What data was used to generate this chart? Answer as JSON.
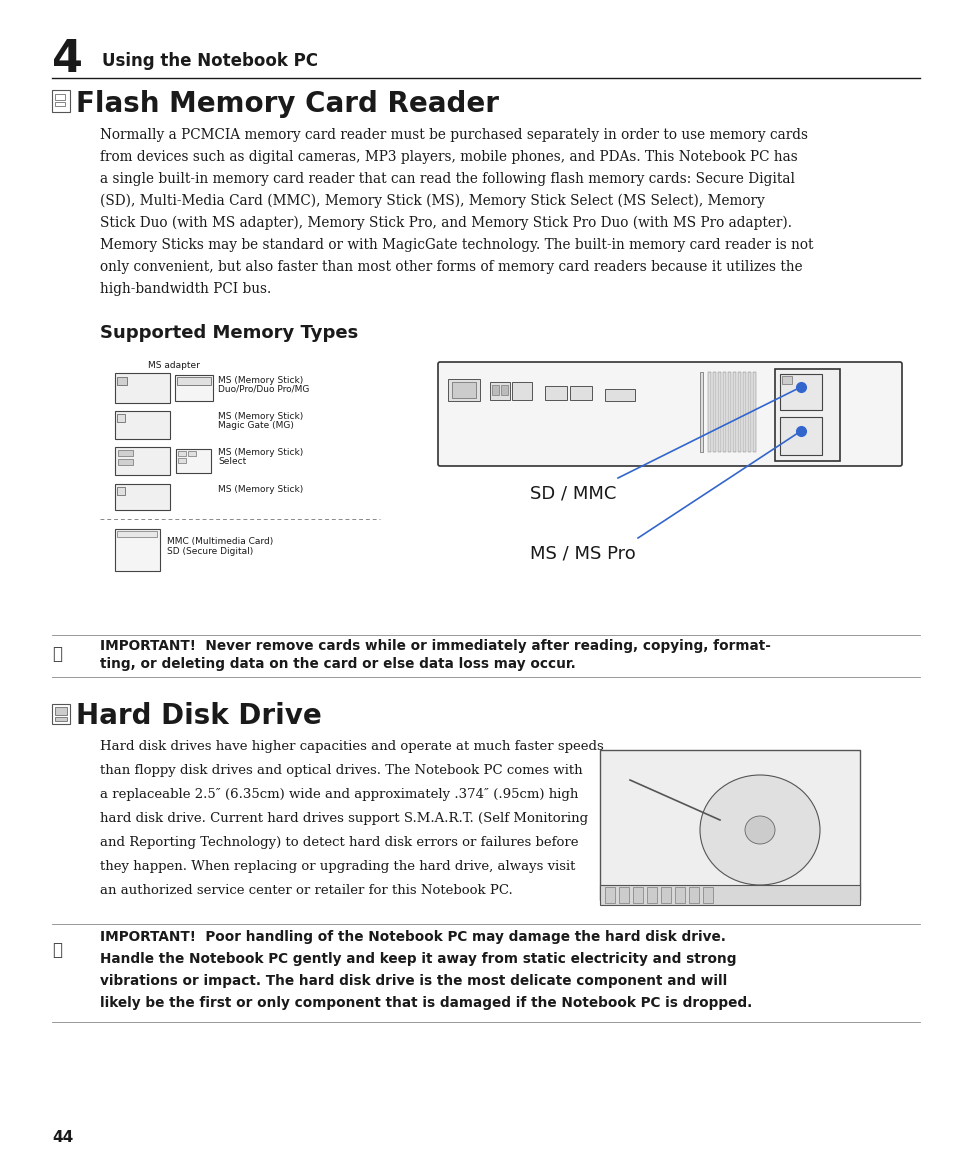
{
  "background_color": "#ffffff",
  "text_color": "#1a1a1a",
  "chapter_number": "4",
  "chapter_title": "Using the Notebook PC",
  "section1_title": "Flash Memory Card Reader",
  "section1_body_lines": [
    "Normally a PCMCIA memory card reader must be purchased separately in order to use memory cards",
    "from devices such as digital cameras, MP3 players, mobile phones, and PDAs. This Notebook PC has",
    "a single built-in memory card reader that can read the following flash memory cards: Secure Digital",
    "(SD), Multi-Media Card (MMC), Memory Stick (MS), Memory Stick Select (MS Select), Memory",
    "Stick Duo (with MS adapter), Memory Stick Pro, and Memory Stick Pro Duo (with MS Pro adapter).",
    "Memory Sticks may be standard or with MagicGate technology. The built-in memory card reader is not",
    "only convenient, but also faster than most other forms of memory card readers because it utilizes the",
    "high-bandwidth PCI bus."
  ],
  "subsection_title": "Supported Memory Types",
  "important1_line1": "IMPORTANT!  Never remove cards while or immediately after reading, copying, format-",
  "important1_line2": "ting, or deleting data on the card or else data loss may occur.",
  "section2_title": "Hard Disk Drive",
  "section2_body_lines": [
    "Hard disk drives have higher capacities and operate at much faster speeds",
    "than floppy disk drives and optical drives. The Notebook PC comes with",
    "a replaceable 2.5″ (6.35cm) wide and approximately .374″ (.95cm) high",
    "hard disk drive. Current hard drives support S.M.A.R.T. (Self Monitoring",
    "and Reporting Technology) to detect hard disk errors or failures before",
    "they happen. When replacing or upgrading the hard drive, always visit",
    "an authorized service center or retailer for this Notebook PC."
  ],
  "important2_line1": "IMPORTANT!  Poor handling of the Notebook PC may damage the hard disk drive.",
  "important2_line2": "Handle the Notebook PC gently and keep it away from static electricity and strong",
  "important2_line3": "vibrations or impact. The hard disk drive is the most delicate component and will",
  "important2_line4": "likely be the first or only component that is damaged if the Notebook PC is dropped.",
  "page_number": "44"
}
